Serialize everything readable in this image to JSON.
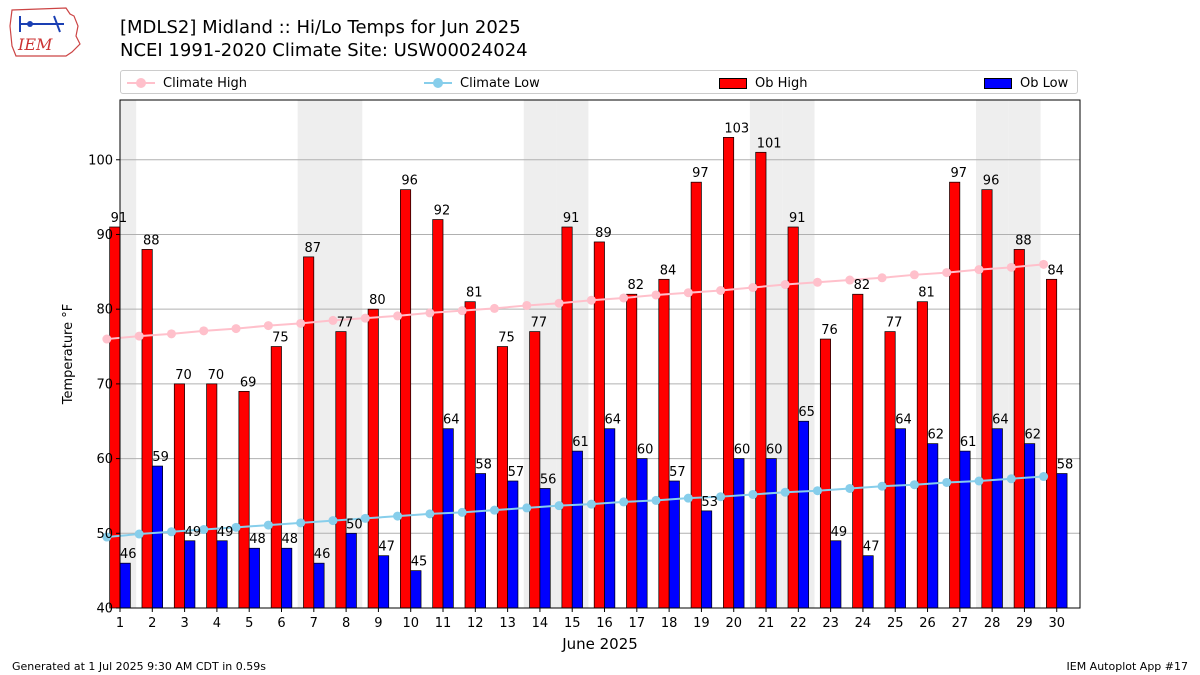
{
  "logo": {
    "text": "IEM"
  },
  "title": {
    "line1": "[MDLS2] Midland :: Hi/Lo Temps for Jun 2025",
    "line2": "NCEI 1991-2020 Climate Site: USW00024024"
  },
  "legend": {
    "climate_high": "Climate High",
    "climate_low": "Climate Low",
    "ob_high": "Ob High",
    "ob_low": "Ob Low"
  },
  "footer": {
    "left": "Generated at 1 Jul 2025 9:30 AM CDT in 0.59s",
    "right": "IEM Autoplot App #17"
  },
  "colors": {
    "ob_high": "#ff0000",
    "ob_low": "#0000ff",
    "climate_high": "#ffc0cb",
    "climate_low": "#87ceeb",
    "weekend_shade": "#eeeeee",
    "grid": "#b0b0b0"
  },
  "chart_data": {
    "type": "bar",
    "xlabel": "June 2025",
    "ylabel": "Temperature °F",
    "ylim": [
      40,
      108
    ],
    "yticks": [
      40,
      50,
      60,
      70,
      80,
      90,
      100
    ],
    "grid": "horizontal",
    "legend_position": "top",
    "categories": [
      "1",
      "2",
      "3",
      "4",
      "5",
      "6",
      "7",
      "8",
      "9",
      "10",
      "11",
      "12",
      "13",
      "14",
      "15",
      "16",
      "17",
      "18",
      "19",
      "20",
      "21",
      "22",
      "23",
      "24",
      "25",
      "26",
      "27",
      "28",
      "29",
      "30"
    ],
    "shaded_days": [
      1,
      7,
      8,
      14,
      15,
      21,
      22,
      28,
      29
    ],
    "series": [
      {
        "name": "Ob High",
        "kind": "bar",
        "values": [
          91,
          88,
          70,
          70,
          69,
          75,
          87,
          77,
          80,
          96,
          92,
          81,
          75,
          77,
          91,
          89,
          82,
          84,
          97,
          103,
          101,
          91,
          76,
          82,
          77,
          81,
          97,
          96,
          88,
          84
        ]
      },
      {
        "name": "Ob Low",
        "kind": "bar",
        "values": [
          46,
          59,
          49,
          49,
          48,
          48,
          46,
          50,
          47,
          45,
          64,
          58,
          57,
          56,
          61,
          64,
          60,
          57,
          53,
          60,
          60,
          65,
          49,
          47,
          64,
          62,
          61,
          64,
          62,
          58
        ]
      },
      {
        "name": "Climate High",
        "kind": "line",
        "values": [
          76.0,
          76.4,
          76.7,
          77.1,
          77.4,
          77.8,
          78.1,
          78.5,
          78.8,
          79.1,
          79.5,
          79.8,
          80.1,
          80.5,
          80.8,
          81.2,
          81.5,
          81.9,
          82.2,
          82.5,
          82.9,
          83.3,
          83.6,
          83.9,
          84.2,
          84.6,
          84.9,
          85.3,
          85.6,
          86.0
        ]
      },
      {
        "name": "Climate Low",
        "kind": "line",
        "values": [
          49.5,
          49.9,
          50.2,
          50.5,
          50.8,
          51.1,
          51.4,
          51.7,
          52.0,
          52.3,
          52.6,
          52.8,
          53.1,
          53.4,
          53.7,
          53.9,
          54.2,
          54.4,
          54.7,
          54.9,
          55.2,
          55.5,
          55.7,
          56.0,
          56.3,
          56.5,
          56.8,
          57.0,
          57.3,
          57.6
        ]
      }
    ]
  }
}
